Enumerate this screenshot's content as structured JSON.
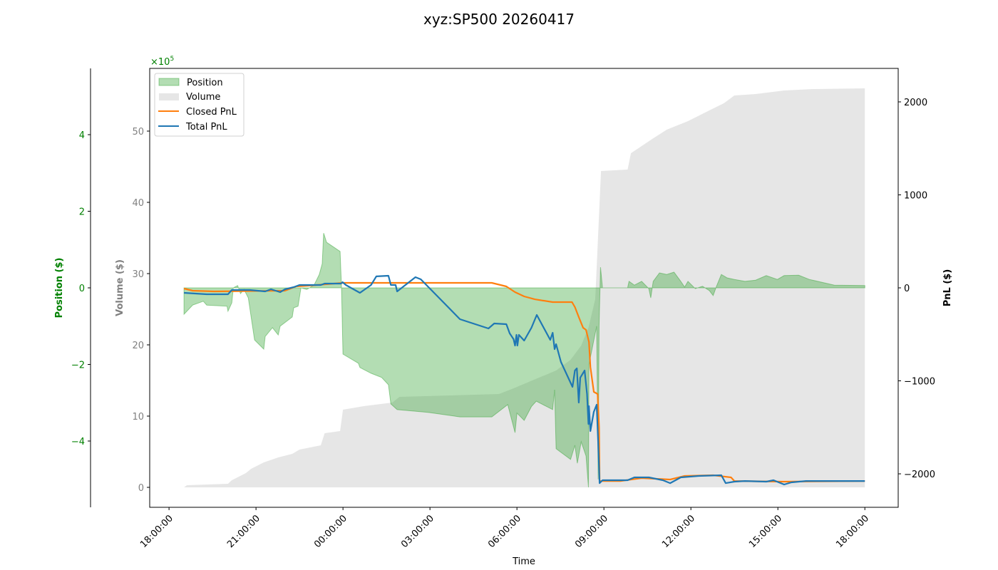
{
  "chart_data": {
    "type": "area+line",
    "title": "xyz:SP500 20260417",
    "xlabel": "Time",
    "xlim": [
      "17:20",
      "19:09"
    ],
    "x_ticks": [
      "18:00:00",
      "21:00:00",
      "00:00:00",
      "03:00:00",
      "06:00:00",
      "09:00:00",
      "12:00:00",
      "15:00:00",
      "18:00:00"
    ],
    "grid": false,
    "legend_placement": "upper-left",
    "axes": {
      "position": {
        "label": "Position ($)",
        "color": "#008000",
        "multiplier_label": "×10",
        "multiplier_exp": "5",
        "ylim": [
          -5.73,
          5.73
        ],
        "ticks": [
          -4,
          -2,
          0,
          2,
          4
        ],
        "tick_labels": [
          "−4",
          "−2",
          "0",
          "2",
          "4"
        ]
      },
      "volume": {
        "label": "Volume ($)",
        "color": "#808080",
        "ylim": [
          -2.8,
          58.8
        ],
        "ticks": [
          0,
          10,
          20,
          30,
          40,
          50
        ],
        "tick_labels": [
          "0",
          "10",
          "20",
          "30",
          "40",
          "50"
        ]
      },
      "pnl": {
        "label": "PnL ($)",
        "color": "#000000",
        "ylim": [
          -2360,
          2360
        ],
        "ticks": [
          -2000,
          -1000,
          0,
          1000,
          2000
        ],
        "tick_labels": [
          "−2000",
          "−1000",
          "0",
          "1000",
          "2000"
        ]
      }
    },
    "series": [
      {
        "name": "Position",
        "kind": "area",
        "axis": "position",
        "color": "#2ca02c",
        "x": [
          "18:31",
          "18:49",
          "19:11",
          "19:18",
          "20:00",
          "20:02",
          "20:10",
          "20:13",
          "20:22",
          "20:28",
          "20:35",
          "20:44",
          "20:50",
          "20:57",
          "21:16",
          "21:19",
          "21:34",
          "21:46",
          "21:50",
          "22:15",
          "22:18",
          "22:27",
          "22:33",
          "22:45",
          "23:00",
          "23:11",
          "23:17",
          "23:20",
          "23:26",
          "23:54",
          "23:57",
          "00:00",
          "00:32",
          "00:35",
          "00:58",
          "01:20",
          "01:34",
          "01:39",
          "01:52",
          "02:56",
          "04:02",
          "05:08",
          "05:41",
          "05:56",
          "06:00",
          "06:15",
          "06:30",
          "06:40",
          "07:14",
          "07:18",
          "07:21",
          "07:51",
          "08:00",
          "08:05",
          "08:13",
          "08:23",
          "08:28",
          "08:29",
          "08:45",
          "08:48",
          "08:50",
          "08:53",
          "08:57",
          "09:49",
          "09:52",
          "10:03",
          "10:18",
          "10:33",
          "10:37",
          "10:42",
          "10:55",
          "11:10",
          "11:25",
          "11:39",
          "11:47",
          "11:54",
          "12:09",
          "12:24",
          "12:38",
          "12:46",
          "12:53",
          "13:03",
          "13:15",
          "13:30",
          "13:52",
          "14:14",
          "14:36",
          "14:59",
          "15:13",
          "15:43",
          "16:05",
          "16:57",
          "18:00"
        ],
        "values": [
          -0.69,
          -0.45,
          -0.35,
          -0.45,
          -0.48,
          -0.61,
          -0.39,
          0,
          0.06,
          -0.15,
          -0.04,
          -0.26,
          -0.76,
          -1.36,
          -1.6,
          -1.27,
          -1.04,
          -1.23,
          -1.0,
          -0.76,
          -0.52,
          -0.48,
          0,
          -0.04,
          0.07,
          0.35,
          0.63,
          1.43,
          1.19,
          0.95,
          0,
          -1.73,
          -1.97,
          -2.08,
          -2.23,
          -2.34,
          -2.53,
          -3.03,
          -3.18,
          -3.25,
          -3.37,
          -3.37,
          -3.05,
          -3.78,
          -3.27,
          -3.46,
          -3.1,
          -2.96,
          -3.18,
          -2.66,
          -4.2,
          -4.48,
          -4.11,
          -4.58,
          -4.02,
          -4.39,
          -5.21,
          -2.0,
          -1.0,
          -5.0,
          -1.0,
          0.54,
          0,
          0,
          0.17,
          0.07,
          0.17,
          -0.02,
          -0.26,
          0.17,
          0.39,
          0.35,
          0.41,
          0.17,
          0.02,
          0.17,
          -0.02,
          0.04,
          -0.07,
          -0.2,
          0.04,
          0.35,
          0.26,
          0.22,
          0.17,
          0.2,
          0.32,
          0.22,
          0.32,
          0.33,
          0.22,
          0.07,
          0.06
        ]
      },
      {
        "name": "Volume",
        "kind": "area",
        "axis": "volume",
        "color": "#808080",
        "x": [
          "18:31",
          "18:37",
          "20:02",
          "20:10",
          "20:39",
          "20:50",
          "21:16",
          "21:46",
          "22:15",
          "22:30",
          "23:14",
          "23:22",
          "23:54",
          "00:00",
          "00:43",
          "01:42",
          "01:57",
          "05:23",
          "05:53",
          "07:21",
          "07:51",
          "08:13",
          "08:28",
          "08:42",
          "08:50",
          "08:54",
          "09:49",
          "09:56",
          "10:18",
          "10:40",
          "11:10",
          "11:54",
          "12:38",
          "13:08",
          "13:30",
          "14:14",
          "15:13",
          "16:12",
          "18:00"
        ],
        "values": [
          0,
          0.3,
          0.5,
          1.0,
          2.0,
          2.6,
          3.5,
          4.2,
          4.7,
          5.3,
          5.9,
          7.6,
          7.9,
          10.9,
          11.4,
          11.9,
          12.7,
          13.1,
          13.9,
          16.4,
          17.9,
          19.9,
          22.4,
          26.4,
          38.4,
          44.4,
          44.6,
          46.9,
          47.9,
          48.9,
          50.2,
          51.4,
          52.9,
          53.9,
          55.0,
          55.2,
          55.7,
          55.9,
          56.0
        ]
      },
      {
        "name": "Closed PnL",
        "kind": "line",
        "axis": "pnl",
        "color": "#ff7f0e",
        "x": [
          "18:31",
          "18:49",
          "19:33",
          "22:00",
          "22:23",
          "22:48",
          "00:00",
          "05:08",
          "05:38",
          "05:56",
          "06:15",
          "06:37",
          "07:14",
          "07:54",
          "08:00",
          "08:08",
          "08:17",
          "08:23",
          "08:29",
          "08:32",
          "08:39",
          "08:47",
          "08:50",
          "08:51",
          "09:34",
          "10:18",
          "11:17",
          "11:47",
          "12:46",
          "13:23",
          "13:30",
          "15:13",
          "18:00"
        ],
        "values": [
          -8,
          -31,
          -38,
          -31,
          15,
          23,
          54,
          54,
          15,
          -46,
          -92,
          -123,
          -153,
          -153,
          -207,
          -314,
          -429,
          -452,
          -582,
          -851,
          -1119,
          -1142,
          -1502,
          -2077,
          -2077,
          -2046,
          -2061,
          -2023,
          -2015,
          -2038,
          -2077,
          -2084,
          -2077
        ]
      },
      {
        "name": "Total PnL",
        "kind": "line",
        "axis": "pnl",
        "color": "#1f77b4",
        "x": [
          "18:31",
          "19:18",
          "20:02",
          "20:10",
          "20:47",
          "21:19",
          "21:31",
          "21:50",
          "22:00",
          "22:18",
          "22:30",
          "23:14",
          "23:22",
          "23:56",
          "23:59",
          "00:06",
          "00:35",
          "00:58",
          "01:09",
          "01:34",
          "01:39",
          "01:49",
          "01:52",
          "02:30",
          "02:41",
          "04:02",
          "05:01",
          "05:13",
          "05:38",
          "05:45",
          "05:53",
          "05:56",
          "05:59",
          "06:01",
          "06:04",
          "06:15",
          "06:30",
          "06:41",
          "07:09",
          "07:14",
          "07:18",
          "07:21",
          "07:31",
          "07:55",
          "08:00",
          "08:04",
          "08:08",
          "08:11",
          "08:20",
          "08:25",
          "08:28",
          "08:29",
          "08:32",
          "08:39",
          "08:45",
          "08:48",
          "08:51",
          "08:57",
          "09:49",
          "10:03",
          "10:33",
          "11:02",
          "11:17",
          "11:39",
          "12:16",
          "13:03",
          "13:12",
          "13:30",
          "13:52",
          "14:36",
          "14:51",
          "15:13",
          "15:28",
          "15:58",
          "18:00"
        ],
        "values": [
          -54,
          -69,
          -69,
          -23,
          -23,
          -38,
          -15,
          -46,
          -15,
          8,
          31,
          31,
          46,
          46,
          61,
          31,
          -54,
          31,
          123,
          130,
          31,
          31,
          -38,
          115,
          92,
          -337,
          -437,
          -383,
          -391,
          -490,
          -552,
          -621,
          -506,
          -621,
          -506,
          -567,
          -429,
          -291,
          -559,
          -483,
          -659,
          -605,
          -797,
          -1065,
          -889,
          -866,
          -1234,
          -966,
          -889,
          -1142,
          -1464,
          -1272,
          -1540,
          -1333,
          -1257,
          -1655,
          -2100,
          -2069,
          -2069,
          -2038,
          -2038,
          -2069,
          -2100,
          -2038,
          -2023,
          -2015,
          -2100,
          -2084,
          -2077,
          -2084,
          -2069,
          -2115,
          -2092,
          -2077,
          -2077
        ]
      }
    ]
  }
}
